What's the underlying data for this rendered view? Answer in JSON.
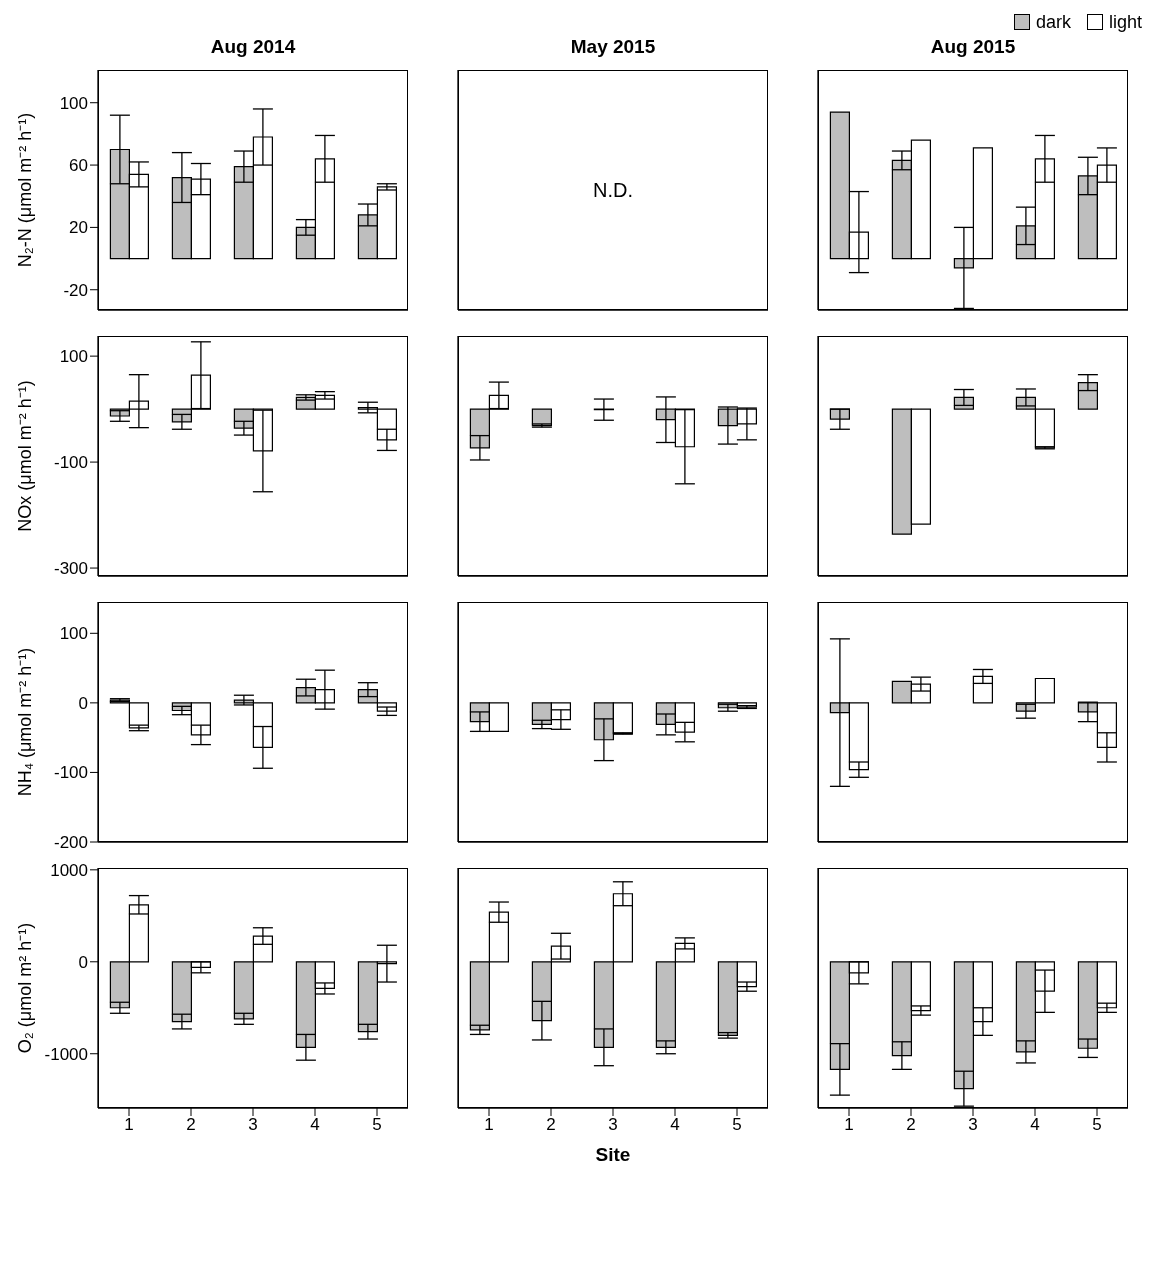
{
  "chart_data": [
    {
      "type": "bar",
      "title": "Aug 2014",
      "ylabel": "N₂-N (μmol m⁻² h⁻¹)",
      "categories": [
        "1",
        "2",
        "3",
        "4",
        "5"
      ],
      "ylim": [
        -33,
        121
      ],
      "yticks": [
        -20,
        20,
        60,
        100
      ],
      "tick_labels": "y",
      "series": [
        {
          "color": "#bebebe",
          "values": [
            70,
            52,
            59,
            20,
            28
          ],
          "errors": [
            22,
            16,
            10,
            5,
            7
          ]
        },
        {
          "color": "#ffffff",
          "values": [
            54,
            51,
            78,
            64,
            46
          ],
          "errors": [
            8,
            10,
            18,
            15,
            2
          ]
        }
      ]
    },
    {
      "type": "bar",
      "title": "May 2015",
      "categories": [
        "1",
        "2",
        "3",
        "4",
        "5"
      ],
      "ylim": [
        -33,
        121
      ],
      "yticks": [
        -20,
        20,
        60,
        100
      ],
      "tick_labels": false,
      "annotations": [
        "N.D."
      ]
    },
    {
      "type": "bar",
      "title": "Aug 2015",
      "legend": "top right",
      "categories": [
        "1",
        "2",
        "3",
        "4",
        "5"
      ],
      "ylim": [
        -33,
        121
      ],
      "yticks": [
        -20,
        20,
        60,
        100
      ],
      "tick_labels": false,
      "series": [
        {
          "name": "dark",
          "color": "#bebebe",
          "values": [
            94,
            63,
            -6,
            21,
            53
          ],
          "errors": [
            null,
            6,
            26,
            12,
            12
          ]
        },
        {
          "name": "light",
          "color": "#ffffff",
          "values": [
            17,
            76,
            71,
            64,
            60
          ],
          "errors": [
            26,
            null,
            null,
            15,
            11
          ]
        }
      ]
    },
    {
      "type": "bar",
      "ylabel": "NOx (μmol m⁻² h⁻¹)",
      "categories": [
        "1",
        "2",
        "3",
        "4",
        "5"
      ],
      "ylim": [
        -315,
        138
      ],
      "yticks": [
        -300,
        -100,
        100
      ],
      "tick_labels": "y",
      "series": [
        {
          "color": "#bebebe",
          "values": [
            -13,
            -24,
            -36,
            22,
            3
          ],
          "errors": [
            10,
            14,
            13,
            5,
            10
          ]
        },
        {
          "color": "#ffffff",
          "values": [
            15,
            64,
            -79,
            26,
            -58
          ],
          "errors": [
            50,
            63,
            77,
            7,
            20
          ]
        }
      ]
    },
    {
      "type": "bar",
      "categories": [
        "1",
        "2",
        "3",
        "4",
        "5"
      ],
      "ylim": [
        -315,
        138
      ],
      "yticks": [
        -300,
        -100,
        100
      ],
      "tick_labels": false,
      "series": [
        {
          "color": "#bebebe",
          "values": [
            -73,
            -31,
            -1,
            -20,
            -31
          ],
          "errors": [
            23,
            3,
            20,
            43,
            35
          ]
        },
        {
          "color": "#ffffff",
          "values": [
            26,
            0,
            0,
            -71,
            -28
          ],
          "errors": [
            25,
            null,
            null,
            70,
            30
          ]
        }
      ]
    },
    {
      "type": "bar",
      "categories": [
        "1",
        "2",
        "3",
        "4",
        "5"
      ],
      "ylim": [
        -315,
        138
      ],
      "yticks": [
        -300,
        -100,
        100
      ],
      "tick_labels": false,
      "series": [
        {
          "color": "#bebebe",
          "values": [
            -19,
            -236,
            22,
            22,
            50
          ],
          "errors": [
            19,
            null,
            15,
            16,
            15
          ]
        },
        {
          "color": "#ffffff",
          "values": [
            0,
            -217,
            0,
            -73,
            null
          ],
          "errors": [
            null,
            null,
            null,
            2,
            null
          ]
        }
      ]
    },
    {
      "type": "bar",
      "ylabel": "NH₄ (μmol m⁻² h⁻¹)",
      "categories": [
        "1",
        "2",
        "3",
        "4",
        "5"
      ],
      "ylim": [
        -200,
        145
      ],
      "yticks": [
        -200,
        -100,
        0,
        100
      ],
      "tick_labels": "y",
      "series": [
        {
          "color": "#bebebe",
          "values": [
            4,
            -11,
            4,
            22,
            19
          ],
          "errors": [
            2,
            6,
            7,
            12,
            10
          ]
        },
        {
          "color": "#ffffff",
          "values": [
            -36,
            -46,
            -64,
            19,
            -12
          ],
          "errors": [
            4,
            14,
            30,
            28,
            6
          ]
        }
      ]
    },
    {
      "type": "bar",
      "categories": [
        "1",
        "2",
        "3",
        "4",
        "5"
      ],
      "ylim": [
        -200,
        145
      ],
      "yticks": [
        -200,
        -100,
        0,
        100
      ],
      "tick_labels": false,
      "series": [
        {
          "color": "#bebebe",
          "values": [
            -27,
            -31,
            -53,
            -31,
            -7
          ],
          "errors": [
            14,
            6,
            30,
            15,
            5
          ]
        },
        {
          "color": "#ffffff",
          "values": [
            -41,
            -24,
            -44,
            -42,
            -6
          ],
          "errors": [
            null,
            14,
            1,
            14,
            2
          ]
        }
      ]
    },
    {
      "type": "bar",
      "categories": [
        "1",
        "2",
        "3",
        "4",
        "5"
      ],
      "ylim": [
        -200,
        145
      ],
      "yticks": [
        -200,
        -100,
        0,
        100
      ],
      "tick_labels": false,
      "series": [
        {
          "color": "#bebebe",
          "values": [
            -14,
            31,
            0,
            -12,
            -13
          ],
          "errors": [
            106,
            null,
            null,
            10,
            14
          ]
        },
        {
          "color": "#ffffff",
          "values": [
            -96,
            27,
            38,
            35,
            -64
          ],
          "errors": [
            11,
            10,
            10,
            null,
            21
          ]
        }
      ]
    },
    {
      "type": "bar",
      "ylabel": "O₂ (μmol m² h⁻¹)",
      "categories": [
        "1",
        "2",
        "3",
        "4",
        "5"
      ],
      "ylim": [
        -1590,
        1020
      ],
      "yticks": [
        -1000,
        0,
        1000
      ],
      "series": [
        {
          "color": "#bebebe",
          "values": [
            -500,
            -650,
            -620,
            -930,
            -760
          ],
          "errors": [
            60,
            80,
            60,
            140,
            80
          ]
        },
        {
          "color": "#ffffff",
          "values": [
            620,
            -60,
            280,
            -290,
            -20
          ],
          "errors": [
            100,
            60,
            90,
            60,
            200
          ]
        }
      ]
    },
    {
      "type": "bar",
      "xlabel": "Site",
      "categories": [
        "1",
        "2",
        "3",
        "4",
        "5"
      ],
      "ylim": [
        -1590,
        1020
      ],
      "yticks": [
        -1000,
        0,
        1000
      ],
      "tick_labels": "x",
      "series": [
        {
          "color": "#bebebe",
          "values": [
            -740,
            -640,
            -930,
            -930,
            -800
          ],
          "errors": [
            50,
            210,
            200,
            70,
            30
          ]
        },
        {
          "color": "#ffffff",
          "values": [
            540,
            170,
            740,
            200,
            -270
          ],
          "errors": [
            110,
            140,
            130,
            60,
            50
          ]
        }
      ]
    },
    {
      "type": "bar",
      "categories": [
        "1",
        "2",
        "3",
        "4",
        "5"
      ],
      "ylim": [
        -1590,
        1020
      ],
      "yticks": [
        -1000,
        0,
        1000
      ],
      "tick_labels": "x",
      "series": [
        {
          "color": "#bebebe",
          "values": [
            -1170,
            -1020,
            -1380,
            -980,
            -940
          ],
          "errors": [
            280,
            150,
            190,
            120,
            100
          ]
        },
        {
          "color": "#ffffff",
          "values": [
            -120,
            -530,
            -650,
            -320,
            -500
          ],
          "errors": [
            120,
            50,
            150,
            230,
            50
          ]
        }
      ]
    }
  ]
}
